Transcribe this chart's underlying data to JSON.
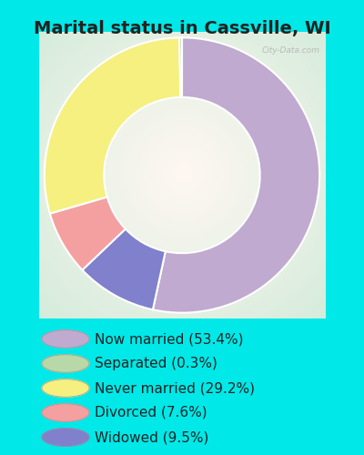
{
  "title": "Marital status in Cassville, WI",
  "slices": [
    53.4,
    0.3,
    29.2,
    7.6,
    9.5
  ],
  "slice_order": [
    0,
    4,
    3,
    2,
    1
  ],
  "labels": [
    "Now married (53.4%)",
    "Separated (0.3%)",
    "Never married (29.2%)",
    "Divorced (7.6%)",
    "Widowed (9.5%)"
  ],
  "colors": [
    "#c0aad0",
    "#b8d8a8",
    "#f5f080",
    "#f4a0a0",
    "#8080cc"
  ],
  "background_cyan": "#00e8e8",
  "chart_bg_outer": "#c8e8d0",
  "chart_bg_inner": "#e8f5ee",
  "title_fontsize": 14,
  "title_color": "#222222",
  "watermark": "City-Data.com",
  "legend_fontsize": 11,
  "donut_width": 0.52,
  "start_angle": 90
}
